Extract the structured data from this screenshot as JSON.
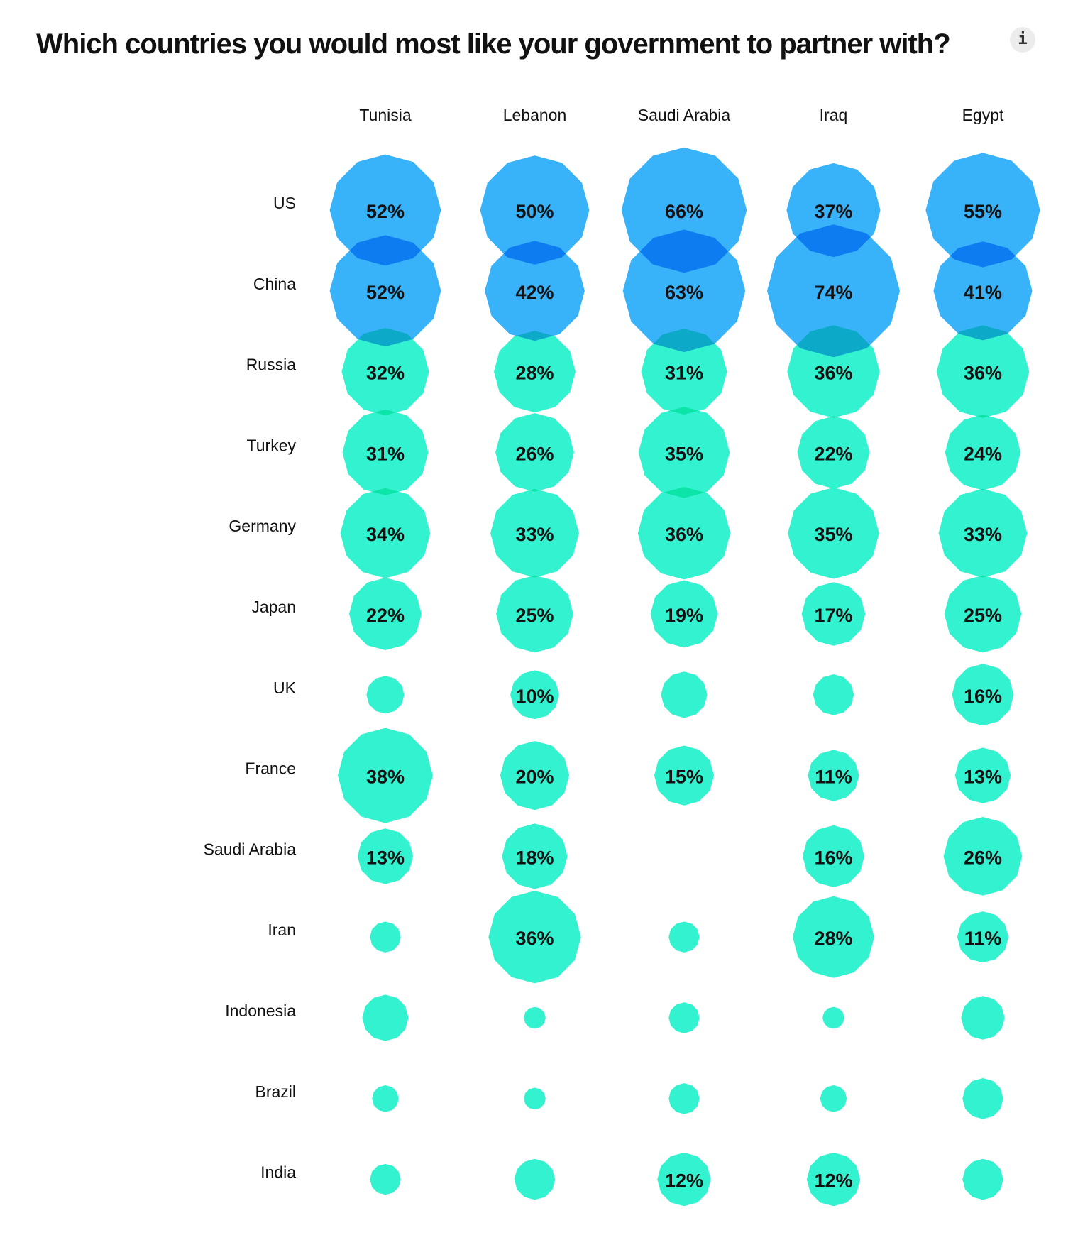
{
  "chart_data": {
    "type": "bubble-grid",
    "title": "Which countries you would most like your government to partner with?",
    "columns": [
      "Tunisia",
      "Lebanon",
      "Saudi Arabia",
      "Iraq",
      "Egypt"
    ],
    "rows": [
      "US",
      "China",
      "Russia",
      "Turkey",
      "Germany",
      "Japan",
      "UK",
      "France",
      "Saudi Arabia",
      "Iran",
      "Indonesia",
      "Brazil",
      "India"
    ],
    "values": [
      [
        52,
        50,
        66,
        37,
        55
      ],
      [
        52,
        42,
        63,
        74,
        41
      ],
      [
        32,
        28,
        31,
        36,
        36
      ],
      [
        31,
        26,
        35,
        22,
        24
      ],
      [
        34,
        33,
        36,
        35,
        33
      ],
      [
        22,
        25,
        19,
        17,
        25
      ],
      [
        6,
        10,
        9,
        7,
        16
      ],
      [
        38,
        20,
        15,
        11,
        13
      ],
      [
        13,
        18,
        null,
        16,
        26
      ],
      [
        4,
        36,
        4,
        28,
        11
      ],
      [
        9,
        2,
        4,
        2,
        8
      ],
      [
        3,
        2,
        4,
        3,
        7
      ],
      [
        4,
        7,
        12,
        12,
        7
      ]
    ],
    "label_unit": "%",
    "label_min": 10,
    "colors": {
      "US": "#38b2f8",
      "China": "#38b2f8",
      "default": "#33f2cf"
    }
  },
  "info_icon": "i"
}
